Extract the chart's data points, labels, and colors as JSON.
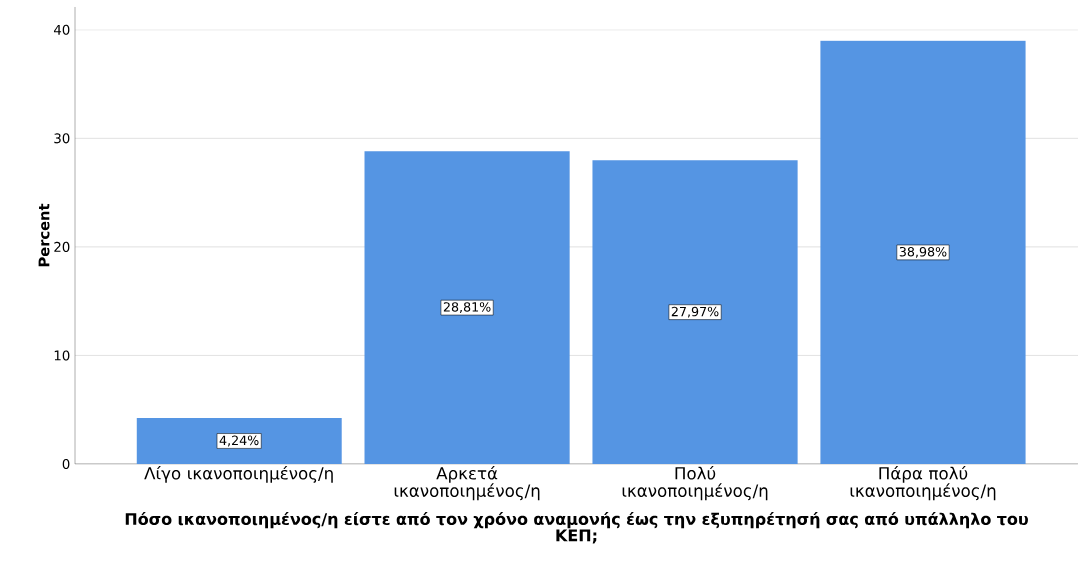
{
  "chart_data": {
    "type": "bar",
    "xlabel": "Πόσο ικανοποιημένος/η είστε από τον χρόνο αναμονής έως την εξυπηρέτησή σας από υπάλληλο του ΚΕΠ;",
    "ylabel": "Percent",
    "categories": [
      "Λίγο ικανοποιημένος/η",
      "Αρκετά ικανοποιημένος/η",
      "Πολύ ικανοποιημένος/η",
      "Πάρα πολύ ικανοποιημένος/η"
    ],
    "values": [
      4.24,
      28.81,
      27.97,
      38.98
    ],
    "value_labels": [
      "4,24%",
      "28,81%",
      "27,97%",
      "38,98%"
    ],
    "color": "#5595e3",
    "ylim": [
      0,
      42.1
    ],
    "yticks": [
      0,
      10,
      20,
      30,
      40
    ],
    "grid": "y"
  }
}
